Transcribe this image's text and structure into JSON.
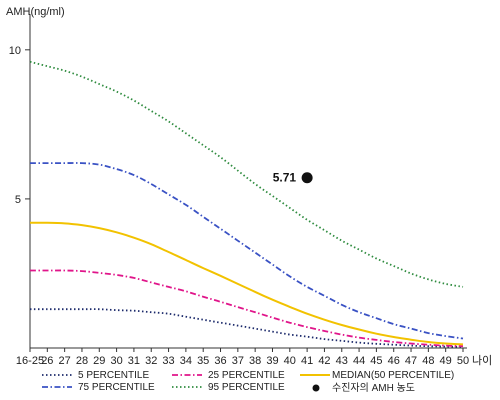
{
  "chart_data": {
    "type": "line",
    "ylabel": "AMH(ng/ml)",
    "xlabel": "나이",
    "categories": [
      "16-25",
      "26",
      "27",
      "28",
      "29",
      "30",
      "31",
      "32",
      "33",
      "34",
      "35",
      "36",
      "37",
      "38",
      "39",
      "40",
      "41",
      "42",
      "43",
      "44",
      "45",
      "46",
      "47",
      "48",
      "49",
      "50"
    ],
    "y_ticks": [
      5,
      10
    ],
    "ylim": [
      0,
      11
    ],
    "grid": false,
    "legend_position": "bottom",
    "series": [
      {
        "name": "5 PERCENTILE",
        "color": "#1c2a6b",
        "dash": "dotted",
        "values": [
          1.3,
          1.3,
          1.3,
          1.3,
          1.3,
          1.27,
          1.25,
          1.2,
          1.15,
          1.05,
          0.95,
          0.85,
          0.75,
          0.65,
          0.55,
          0.45,
          0.38,
          0.3,
          0.24,
          0.18,
          0.14,
          0.11,
          0.08,
          0.06,
          0.05,
          0.04
        ]
      },
      {
        "name": "75 PERCENTILE",
        "color": "#3a52c4",
        "dash": "dashdot",
        "values": [
          6.2,
          6.2,
          6.2,
          6.2,
          6.15,
          6.0,
          5.8,
          5.5,
          5.15,
          4.8,
          4.4,
          4.0,
          3.6,
          3.2,
          2.8,
          2.4,
          2.05,
          1.75,
          1.45,
          1.2,
          1.0,
          0.8,
          0.65,
          0.5,
          0.4,
          0.32
        ]
      },
      {
        "name": "25 PERCENTILE",
        "color": "#e0158a",
        "dash": "dashdot",
        "values": [
          2.6,
          2.6,
          2.6,
          2.58,
          2.52,
          2.45,
          2.35,
          2.2,
          2.05,
          1.9,
          1.72,
          1.55,
          1.37,
          1.2,
          1.02,
          0.85,
          0.7,
          0.57,
          0.45,
          0.35,
          0.27,
          0.2,
          0.15,
          0.11,
          0.08,
          0.06
        ]
      },
      {
        "name": "95 PERCENTILE",
        "color": "#2e8b3e",
        "dash": "dotted",
        "values": [
          9.6,
          9.45,
          9.3,
          9.1,
          8.85,
          8.6,
          8.3,
          7.95,
          7.6,
          7.2,
          6.8,
          6.4,
          5.95,
          5.5,
          5.1,
          4.7,
          4.3,
          3.95,
          3.6,
          3.3,
          3.0,
          2.75,
          2.5,
          2.3,
          2.15,
          2.05
        ]
      },
      {
        "name": "MEDIAN(50 PERCENTILE)",
        "color": "#f2c200",
        "dash": "solid",
        "values": [
          4.2,
          4.2,
          4.18,
          4.12,
          4.02,
          3.88,
          3.7,
          3.48,
          3.22,
          2.95,
          2.68,
          2.42,
          2.15,
          1.88,
          1.62,
          1.38,
          1.15,
          0.95,
          0.77,
          0.62,
          0.48,
          0.37,
          0.28,
          0.2,
          0.15,
          0.12
        ]
      }
    ],
    "patient_point": {
      "name": "수진자의 AMH 농도",
      "x": "41",
      "y": 5.71,
      "label": "5.71",
      "color": "#111111"
    }
  }
}
